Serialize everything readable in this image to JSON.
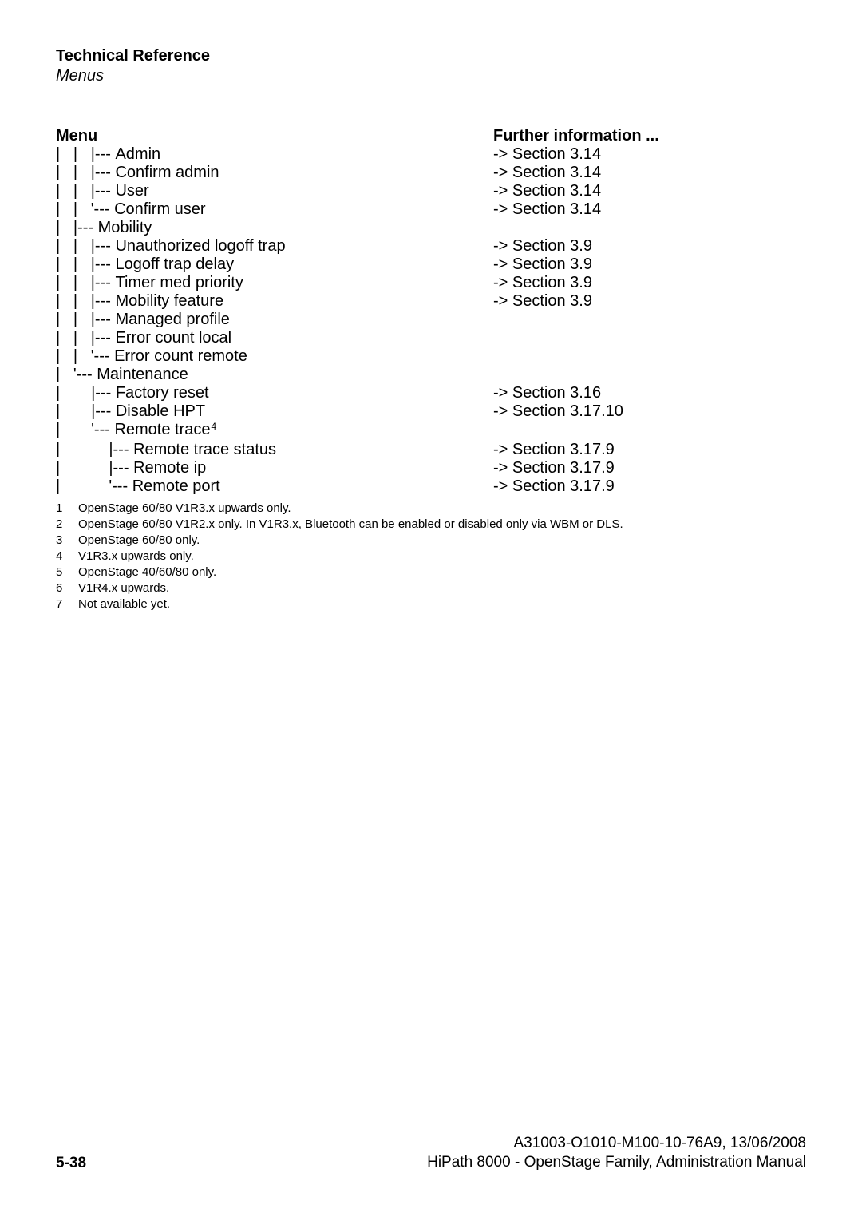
{
  "header": {
    "title": "Technical Reference",
    "subtitle": "Menus"
  },
  "columns": {
    "menu": "Menu",
    "info": "Further information ..."
  },
  "rows": [
    {
      "pipes": "|   |   |--- ",
      "label": "Admin",
      "sup": "",
      "info": "-> Section 3.14"
    },
    {
      "pipes": "|   |   |--- ",
      "label": "Confirm admin",
      "sup": "",
      "info": "-> Section 3.14"
    },
    {
      "pipes": "|   |   |--- ",
      "label": "User",
      "sup": "",
      "info": "-> Section 3.14"
    },
    {
      "pipes": "|   |   '--- ",
      "label": "Confirm user",
      "sup": "",
      "info": "-> Section 3.14"
    },
    {
      "pipes": "|   |--- ",
      "label": "Mobility",
      "sup": "",
      "info": ""
    },
    {
      "pipes": "|   |   |--- ",
      "label": "Unauthorized logoff trap",
      "sup": "",
      "info": "-> Section 3.9"
    },
    {
      "pipes": "|   |   |--- ",
      "label": "Logoff trap delay",
      "sup": "",
      "info": "-> Section 3.9"
    },
    {
      "pipes": "|   |   |--- ",
      "label": "Timer med priority",
      "sup": "",
      "info": "-> Section 3.9"
    },
    {
      "pipes": "|   |   |--- ",
      "label": "Mobility feature",
      "sup": "",
      "info": "-> Section 3.9"
    },
    {
      "pipes": "|   |   |--- ",
      "label": "Managed profile",
      "sup": "",
      "info": ""
    },
    {
      "pipes": "|   |   |--- ",
      "label": "Error count local",
      "sup": "",
      "info": ""
    },
    {
      "pipes": "|   |   '--- ",
      "label": "Error count remote",
      "sup": "",
      "info": ""
    },
    {
      "pipes": "|   '--- ",
      "label": "Maintenance",
      "sup": "",
      "info": ""
    },
    {
      "pipes": "|       |--- ",
      "label": "Factory reset",
      "sup": "",
      "info": "-> Section 3.16"
    },
    {
      "pipes": "|       |--- ",
      "label": "Disable HPT",
      "sup": "",
      "info": "-> Section 3.17.10"
    },
    {
      "pipes": "|       '--- ",
      "label": "Remote trace",
      "sup": "4",
      "info": ""
    },
    {
      "pipes": "|           |--- ",
      "label": "Remote trace status",
      "sup": "",
      "info": "-> Section 3.17.9"
    },
    {
      "pipes": "|           |--- ",
      "label": "Remote ip",
      "sup": "",
      "info": "-> Section 3.17.9"
    },
    {
      "pipes": "|           '--- ",
      "label": "Remote port",
      "sup": "",
      "info": "-> Section 3.17.9"
    }
  ],
  "footnotes": [
    {
      "n": "1",
      "text": "OpenStage 60/80 V1R3.x upwards only."
    },
    {
      "n": "2",
      "text": "OpenStage 60/80 V1R2.x only. In V1R3.x, Bluetooth can be enabled or disabled only via WBM or DLS."
    },
    {
      "n": "3",
      "text": "OpenStage 60/80 only."
    },
    {
      "n": "4",
      "text": "V1R3.x upwards only."
    },
    {
      "n": "5",
      "text": "OpenStage 40/60/80 only."
    },
    {
      "n": "6",
      "text": "V1R4.x upwards."
    },
    {
      "n": "7",
      "text": "Not available yet."
    }
  ],
  "footer": {
    "page": "5-38",
    "doc_id": "A31003-O1010-M100-10-76A9, 13/06/2008",
    "doc_title": "HiPath 8000 - OpenStage Family, Administration Manual"
  }
}
